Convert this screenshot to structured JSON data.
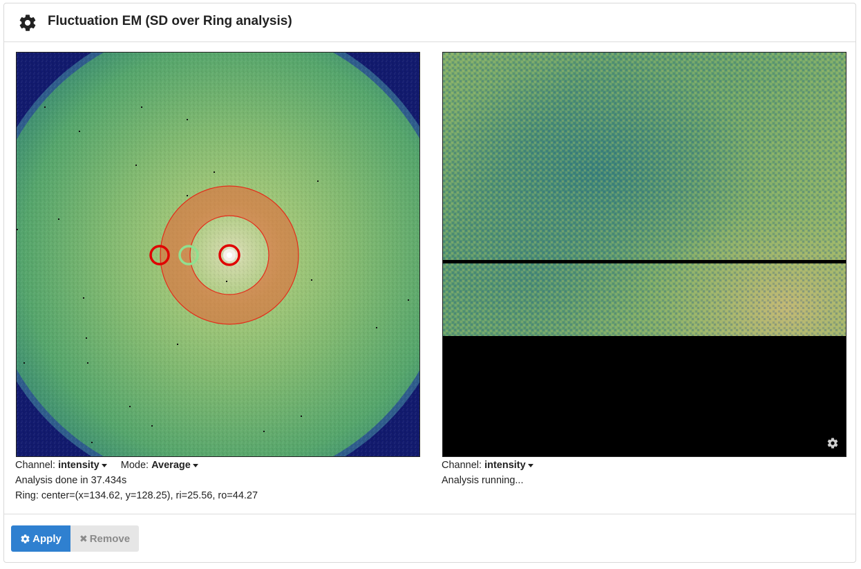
{
  "header": {
    "title": "Fluctuation EM (SD over Ring analysis)",
    "icon": "gear-icon"
  },
  "left": {
    "channel_label": "Channel:",
    "channel_value": "intensity",
    "mode_label": "Mode:",
    "mode_value": "Average",
    "status": "Analysis done in 37.434s",
    "ring_info": "Ring: center=(x=134.62, y=128.25), ri=25.56, ro=44.27"
  },
  "right": {
    "channel_label": "Channel:",
    "channel_value": "intensity",
    "status": "Analysis running...",
    "settings_icon": "gear-icon"
  },
  "footer": {
    "apply_label": "Apply",
    "apply_icon": "gear-icon",
    "remove_label": "Remove",
    "remove_icon": "close-icon"
  },
  "colors": {
    "ring": "#e04a2a",
    "marker_red": "#e00000",
    "marker_green": "#90e090",
    "apply": "#2f80d0"
  }
}
